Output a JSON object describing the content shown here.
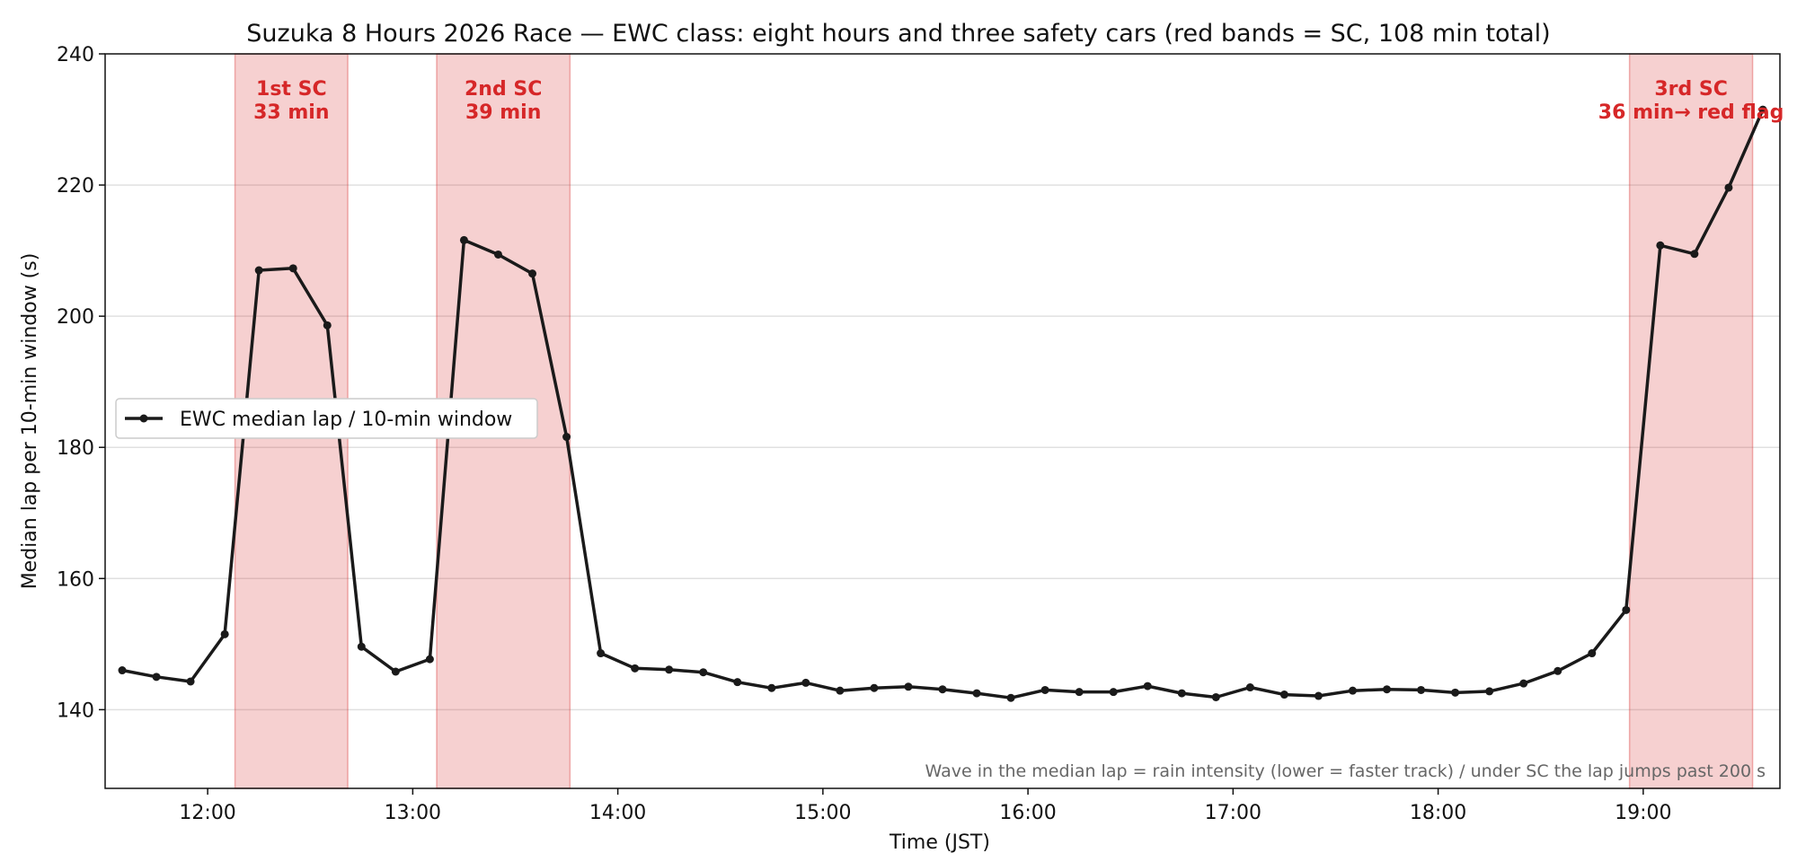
{
  "chart_data": {
    "type": "line",
    "title": "Suzuka 8 Hours 2026 Race — EWC class: eight hours and three safety cars (red bands = SC, 108 min total)",
    "xlabel": "Time (JST)",
    "ylabel": "Median lap per 10-min window (s)",
    "xlim": [
      "11:30",
      "19:40"
    ],
    "ylim": [
      128,
      240
    ],
    "x_ticks": [
      "12:00",
      "13:00",
      "14:00",
      "15:00",
      "16:00",
      "17:00",
      "18:00",
      "19:00"
    ],
    "y_ticks": [
      140,
      160,
      180,
      200,
      220,
      240
    ],
    "grid": "horizontal",
    "legend_position": "center-left",
    "series": [
      {
        "name": "EWC median lap / 10-min window",
        "color": "#1a1a1a",
        "x": [
          "11:35",
          "11:45",
          "11:55",
          "12:05",
          "12:15",
          "12:25",
          "12:35",
          "12:45",
          "12:55",
          "13:05",
          "13:15",
          "13:25",
          "13:35",
          "13:45",
          "13:55",
          "14:05",
          "14:15",
          "14:25",
          "14:35",
          "14:45",
          "14:55",
          "15:05",
          "15:15",
          "15:25",
          "15:35",
          "15:45",
          "15:55",
          "16:05",
          "16:15",
          "16:25",
          "16:35",
          "16:45",
          "16:55",
          "17:05",
          "17:15",
          "17:25",
          "17:35",
          "17:45",
          "17:55",
          "18:05",
          "18:15",
          "18:25",
          "18:35",
          "18:45",
          "18:55",
          "19:05",
          "19:15",
          "19:25",
          "19:35"
        ],
        "y": [
          146.0,
          145.0,
          144.3,
          151.5,
          207.0,
          207.3,
          198.6,
          149.6,
          145.8,
          147.7,
          211.6,
          209.4,
          206.5,
          181.6,
          148.6,
          146.3,
          146.1,
          145.7,
          144.2,
          143.3,
          144.1,
          142.9,
          143.3,
          143.5,
          143.1,
          142.5,
          141.8,
          143.0,
          142.7,
          142.7,
          143.6,
          142.5,
          141.9,
          143.4,
          142.3,
          142.1,
          142.9,
          143.1,
          143.0,
          142.6,
          142.8,
          144.0,
          145.9,
          148.6,
          155.2,
          210.8,
          209.5,
          219.6,
          231.5
        ]
      }
    ],
    "bands": [
      {
        "start": "12:08",
        "end": "12:41",
        "label_line1": "1st SC",
        "label_line2": "33 min",
        "color": "#d62728"
      },
      {
        "start": "13:07",
        "end": "13:46",
        "label_line1": "2nd SC",
        "label_line2": "39 min",
        "color": "#d62728"
      },
      {
        "start": "18:56",
        "end": "19:32",
        "label_line1": "3rd SC",
        "label_line2": "36 min→ red flag",
        "color": "#d62728"
      }
    ],
    "annotation": "Wave in the median lap = rain intensity (lower = faster track) / under SC the lap jumps past 200 s"
  }
}
